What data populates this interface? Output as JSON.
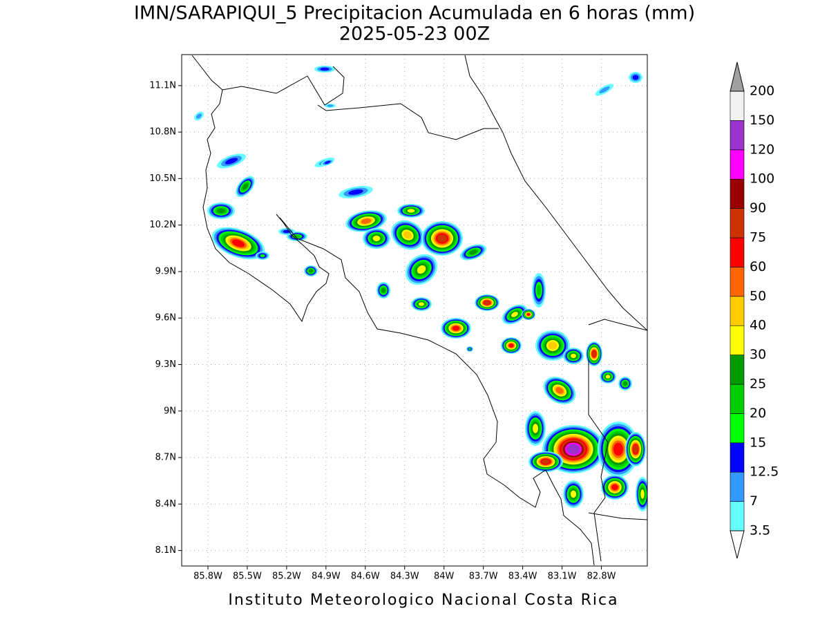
{
  "title": "IMN/SARAPIQUI_5 Precipitacion Acumulada en 6 horas (mm)",
  "subtitle": "2025-05-23 00Z",
  "footer": "Instituto Meteorologico Nacional Costa Rica",
  "map": {
    "xlim": [
      -86.0,
      -82.45
    ],
    "ylim": [
      8.0,
      11.3
    ],
    "grid": true,
    "xticks": [
      {
        "value": -85.8,
        "label": "85.8W"
      },
      {
        "value": -85.5,
        "label": "85.5W"
      },
      {
        "value": -85.2,
        "label": "85.2W"
      },
      {
        "value": -84.9,
        "label": "84.9W"
      },
      {
        "value": -84.6,
        "label": "84.6W"
      },
      {
        "value": -84.3,
        "label": "84.3W"
      },
      {
        "value": -84.0,
        "label": "84W"
      },
      {
        "value": -83.7,
        "label": "83.7W"
      },
      {
        "value": -83.4,
        "label": "83.4W"
      },
      {
        "value": -83.1,
        "label": "83.1W"
      },
      {
        "value": -82.8,
        "label": "82.8W"
      }
    ],
    "yticks": [
      {
        "value": 8.1,
        "label": "8.1N"
      },
      {
        "value": 8.4,
        "label": "8.4N"
      },
      {
        "value": 8.7,
        "label": "8.7N"
      },
      {
        "value": 9.0,
        "label": "9N"
      },
      {
        "value": 9.3,
        "label": "9.3N"
      },
      {
        "value": 9.6,
        "label": "9.6N"
      },
      {
        "value": 9.9,
        "label": "9.9N"
      },
      {
        "value": 10.2,
        "label": "10.2N"
      },
      {
        "value": 10.5,
        "label": "10.5N"
      },
      {
        "value": 10.8,
        "label": "10.8N"
      },
      {
        "value": 11.1,
        "label": "11.1N"
      }
    ]
  },
  "colorbar": {
    "levels": [
      3.5,
      7,
      12.5,
      15,
      20,
      25,
      30,
      40,
      50,
      60,
      75,
      90,
      100,
      120,
      150,
      200
    ],
    "colors": [
      "#66ffff",
      "#3399ff",
      "#0000ff",
      "#00ff00",
      "#00cc00",
      "#009900",
      "#ffff00",
      "#ffcc00",
      "#ff6600",
      "#ff0000",
      "#cc3300",
      "#990000",
      "#ff00ff",
      "#9933cc",
      "#f2f2f2"
    ],
    "under_color": "#ffffff",
    "over_color": "#a0a0a0"
  }
}
